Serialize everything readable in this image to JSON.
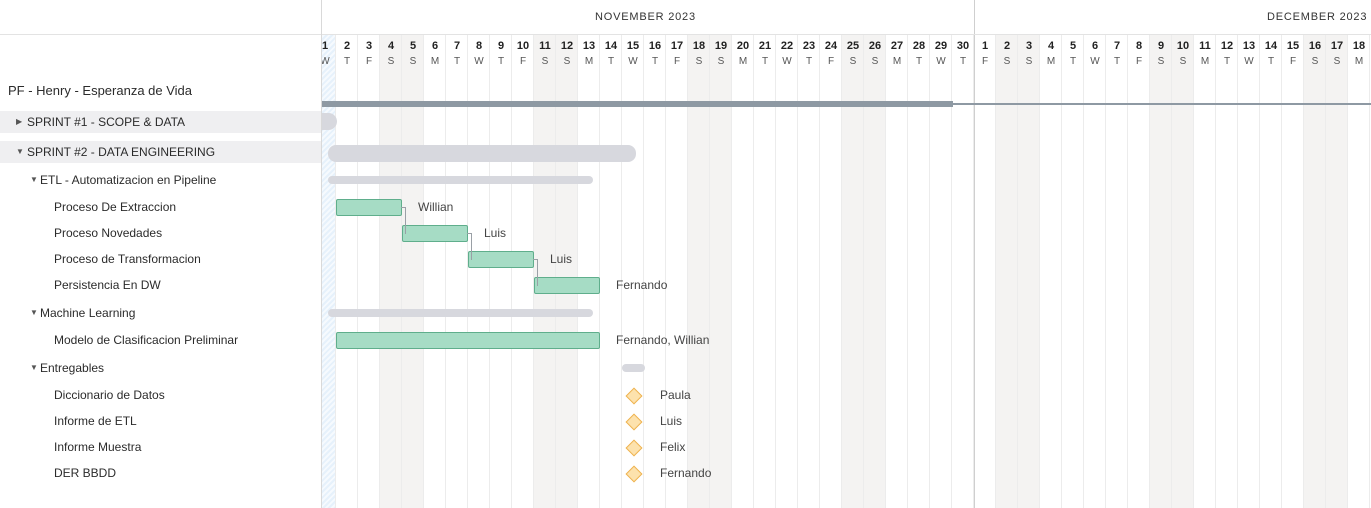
{
  "project": {
    "title": "PF - Henry - Esperanza de Vida"
  },
  "rows": [
    {
      "label": "SPRINT #1 - SCOPE & DATA",
      "type": "sprint",
      "collapsed": true,
      "indent": 0
    },
    {
      "label": "SPRINT #2 - DATA ENGINEERING",
      "type": "sprint",
      "collapsed": false,
      "indent": 0,
      "start": 1,
      "end": 15
    },
    {
      "label": "ETL - Automatizacion en Pipeline",
      "type": "group",
      "indent": 1,
      "start": 1,
      "end": 13
    },
    {
      "label": "Proceso De Extraccion",
      "type": "task",
      "indent": 2,
      "start": 1,
      "end": 3,
      "assignee": "Willian"
    },
    {
      "label": "Proceso Novedades",
      "type": "task",
      "indent": 2,
      "start": 4,
      "end": 6,
      "assignee": "Luis"
    },
    {
      "label": "Proceso de Transformacion",
      "type": "task",
      "indent": 2,
      "start": 7,
      "end": 9,
      "assignee": "Luis"
    },
    {
      "label": "Persistencia En DW",
      "type": "task",
      "indent": 2,
      "start": 10,
      "end": 12,
      "assignee": "Fernando"
    },
    {
      "label": "Machine Learning",
      "type": "group",
      "indent": 1,
      "start": 1,
      "end": 13
    },
    {
      "label": "Modelo de Clasificacion Preliminar",
      "type": "task",
      "indent": 2,
      "start": 1,
      "end": 12,
      "assignee": "Fernando, Willian"
    },
    {
      "label": "Entregables",
      "type": "group",
      "indent": 1,
      "start": 14,
      "end": 15
    },
    {
      "label": "Diccionario de Datos",
      "type": "milestone",
      "indent": 2,
      "start": 14,
      "assignee": "Paula"
    },
    {
      "label": "Informe de ETL",
      "type": "milestone",
      "indent": 2,
      "start": 14,
      "assignee": "Luis"
    },
    {
      "label": "Informe Muestra",
      "type": "milestone",
      "indent": 2,
      "start": 14,
      "assignee": "Felix"
    },
    {
      "label": "DER BBDD",
      "type": "milestone",
      "indent": 2,
      "start": 14,
      "assignee": "Fernando"
    }
  ],
  "timeline": {
    "months": [
      {
        "name": "NOVEMBER 2023",
        "days": 30,
        "first_weekday": 3
      },
      {
        "name": "DECEMBER 2023",
        "days": 18,
        "first_weekday": 5
      }
    ],
    "weekday_letters": [
      "S",
      "M",
      "T",
      "W",
      "T",
      "F",
      "S"
    ],
    "today_day": 1
  },
  "colors": {
    "weekend": "#f4f3f2",
    "task_fill": "#a6dcc5",
    "task_border": "#5fae8c",
    "summary": "#d7d8de",
    "project_bar": "#8e99a3",
    "milestone_fill": "#fde2ad",
    "milestone_border": "#eeb24e"
  },
  "icons": {
    "expanded": "caret-down-icon",
    "collapsed": "caret-right-icon",
    "milestone": "diamond-icon"
  }
}
